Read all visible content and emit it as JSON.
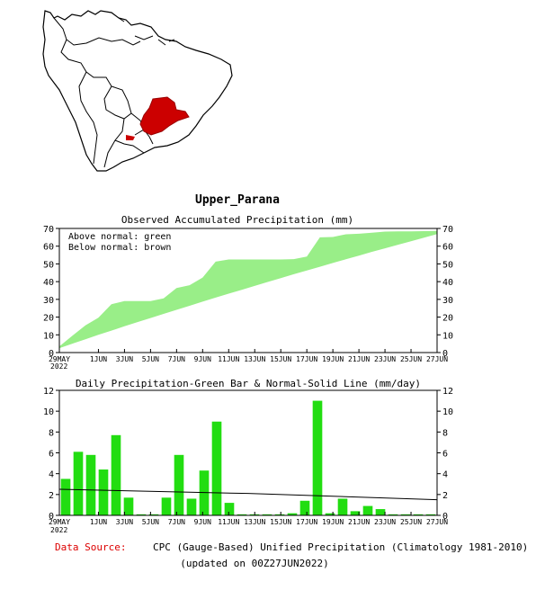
{
  "region_title": "Upper_Parana",
  "map": {
    "land_color": "#ffffff",
    "border_color": "#000000",
    "region_color": "#cc0000"
  },
  "colors": {
    "fill": "#99ee88",
    "bar": "#22dd11",
    "normal_line": "#000000",
    "source_label": "#dd0000"
  },
  "chart_data": [
    {
      "type": "area",
      "title": "Observed Accumulated Precipitation (mm)",
      "legend_lines": [
        "Above normal: green",
        "Below normal: brown"
      ],
      "ylim": [
        0,
        70
      ],
      "yticks": [
        0,
        10,
        20,
        30,
        40,
        50,
        60,
        70
      ],
      "x_day_range": [
        0,
        29
      ],
      "xtick_labels": [
        {
          "day": 0,
          "label": "29MAY"
        },
        {
          "day": 3,
          "label": "1JUN"
        },
        {
          "day": 5,
          "label": "3JUN"
        },
        {
          "day": 7,
          "label": "5JUN"
        },
        {
          "day": 9,
          "label": "7JUN"
        },
        {
          "day": 11,
          "label": "9JUN"
        },
        {
          "day": 13,
          "label": "11JUN"
        },
        {
          "day": 15,
          "label": "13JUN"
        },
        {
          "day": 17,
          "label": "15JUN"
        },
        {
          "day": 19,
          "label": "17JUN"
        },
        {
          "day": 21,
          "label": "19JUN"
        },
        {
          "day": 23,
          "label": "21JUN"
        },
        {
          "day": 25,
          "label": "23JUN"
        },
        {
          "day": 27,
          "label": "25JUN"
        },
        {
          "day": 29,
          "label": "27JUN"
        }
      ],
      "year_label": "2022",
      "observed": [
        3.5,
        9.5,
        15.3,
        19.7,
        27.3,
        29,
        29,
        29,
        30.6,
        36.4,
        38,
        42.3,
        51.3,
        52.5,
        52.5,
        52.5,
        52.5,
        52.5,
        52.7,
        54.1,
        65,
        65.2,
        66.7,
        67,
        67.6,
        68.2,
        68.4,
        68.4,
        68.5,
        68.6
      ],
      "normal": [
        2.5,
        5,
        7.5,
        10,
        12.4,
        14.8,
        17.2,
        19.5,
        21.8,
        24.1,
        26.4,
        28.7,
        31,
        33.2,
        35.4,
        37.6,
        39.8,
        42,
        44.2,
        46.3,
        48.4,
        50.5,
        52.6,
        54.7,
        56.8,
        58.8,
        60.8,
        62.8,
        64.8,
        66.8
      ]
    },
    {
      "type": "bar",
      "title": "Daily Precipitation-Green Bar & Normal-Solid Line (mm/day)",
      "ylim": [
        0,
        12
      ],
      "yticks": [
        0,
        2,
        4,
        6,
        8,
        10,
        12
      ],
      "values": [
        3.5,
        6.1,
        5.8,
        4.4,
        7.7,
        1.7,
        0.1,
        0.1,
        1.7,
        5.8,
        1.6,
        4.3,
        9.0,
        1.2,
        0.1,
        0.1,
        0.1,
        0.1,
        0.2,
        1.4,
        11.0,
        0.2,
        1.6,
        0.4,
        0.9,
        0.6,
        0.1,
        0.1,
        0.1,
        0.1
      ],
      "normal_line": [
        2.5,
        2.1
      ],
      "normal_line_end": 1.5
    }
  ],
  "footer": {
    "source_label": "Data Source:",
    "source_text": "CPC (Gauge-Based) Unified Precipitation (Climatology 1981-2010)",
    "updated": "(updated on 00Z27JUN2022)"
  }
}
